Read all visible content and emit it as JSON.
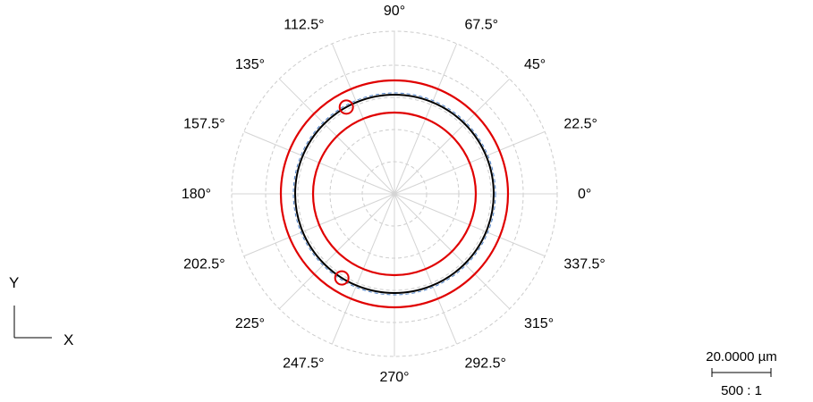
{
  "polar_plot": {
    "angle_labels": [
      "0°",
      "22.5°",
      "45°",
      "67.5°",
      "90°",
      "112.5°",
      "135°",
      "157.5°",
      "180°",
      "202.5°",
      "225°",
      "247.5°",
      "270°",
      "292.5°",
      "315°",
      "337.5°"
    ],
    "angle_step_deg": 22.5,
    "grid_style": "dashed gray",
    "colors": {
      "grid": "#cccccc",
      "tolerance": "#e00000",
      "profile": "#000000",
      "reference": "#4a7fc8",
      "marker": "#e00000"
    },
    "circles": {
      "tolerance_outer": {
        "label": "",
        "color": "#e00000"
      },
      "tolerance_inner": {
        "label": "",
        "color": "#e00000"
      },
      "measured_profile": {
        "label": "",
        "color": "#000000"
      },
      "reference_circle": {
        "label": "",
        "color": "#4a7fc8",
        "style": "dashed"
      }
    },
    "markers": [
      {
        "angle_deg": 119,
        "label": ""
      },
      {
        "angle_deg": 238,
        "label": ""
      }
    ]
  },
  "axes_indicator": {
    "y_label": "Y",
    "x_label": "X"
  },
  "scale_bar": {
    "length_label": "20.0000 µm",
    "ratio_label": "500 : 1"
  }
}
